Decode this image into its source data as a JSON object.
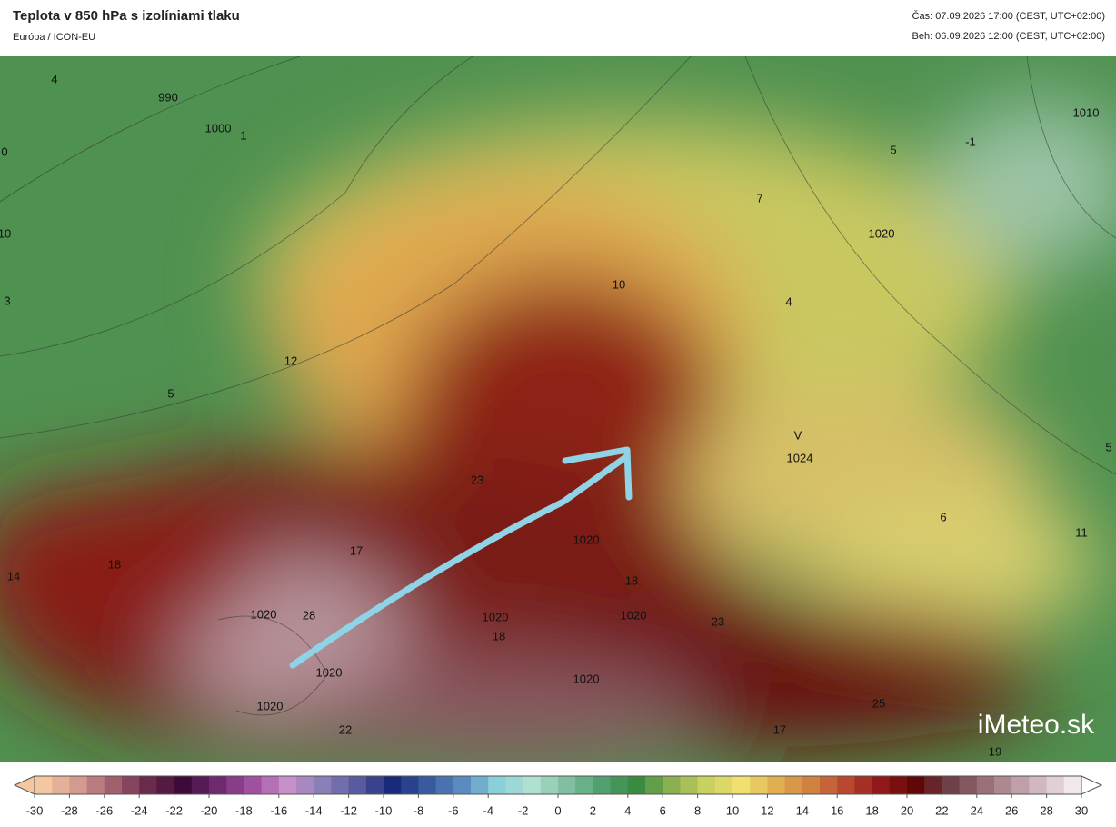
{
  "header": {
    "title": "Teplota v 850 hPa s izolíniami tlaku",
    "subtitle": "Európa / ICON-EU",
    "valid_time": "Čas: 07.09.2026 17:00 (CEST, UTC+02:00)",
    "run_time": "Beh: 06.09.2026 12:00 (CEST, UTC+02:00)"
  },
  "map": {
    "labels": [
      "4",
      "990",
      "1000",
      "1",
      "0",
      "10",
      "3",
      "5",
      "-1",
      "1010",
      "7",
      "1020",
      "10",
      "4",
      "12",
      "5",
      "V",
      "1024",
      "23",
      "17",
      "18",
      "14",
      "1020",
      "18",
      "1020",
      "28",
      "1020",
      "18",
      "1020",
      "23",
      "1020",
      "1020",
      "1020",
      "22",
      "17",
      "25",
      "6",
      "11",
      "5",
      "19"
    ],
    "logo": "iMeteo.sk"
  },
  "colorbar": {
    "ticks": [
      -30,
      -28,
      -26,
      -24,
      -22,
      -20,
      -18,
      -16,
      -14,
      -12,
      -10,
      -8,
      -6,
      -4,
      -2,
      0,
      2,
      4,
      6,
      8,
      10,
      12,
      14,
      16,
      18,
      20,
      22,
      24,
      26,
      28,
      30
    ],
    "colors": [
      "#f3c7a0",
      "#d49a8f",
      "#a0606e",
      "#6a2a4a",
      "#3e0a3a",
      "#6e2a6e",
      "#a050a0",
      "#c890c8",
      "#8a80b8",
      "#5a5aa0",
      "#1a2a7a",
      "#3a5aa0",
      "#5a8ac0",
      "#8ad0d8",
      "#b0e0d0",
      "#80c0a0",
      "#50a070",
      "#3a8a40",
      "#8ab050",
      "#c8d060",
      "#f0e070",
      "#e0b050",
      "#d08040",
      "#b84830",
      "#901818",
      "#600808",
      "#704048",
      "#9a7078",
      "#c0a0a8",
      "#e0d0d4",
      "#ffffff"
    ]
  }
}
